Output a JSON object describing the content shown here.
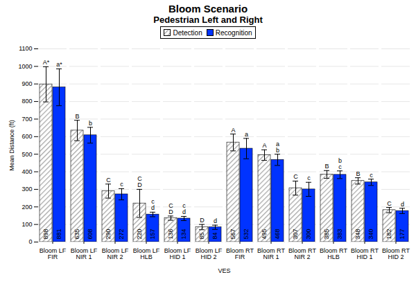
{
  "chart_data": {
    "type": "bar",
    "title": "Bloom Scenario",
    "subtitle": "Pedestrian Left and Right",
    "x_label": "VES",
    "y_label": "Mean Distance (ft)",
    "categories": [
      "Bloom LF\nFIR",
      "Bloom LF\nNIR 1",
      "Bloom LF\nNIR 2",
      "Bloom LF\nHLB",
      "Bloom LF\nHID 1",
      "Bloom LF\nHID 2",
      "Bloom RT\nFIR",
      "Bloom RT\nNIR 1",
      "Bloom RT\nNIR 2",
      "Bloom RT\nHLB",
      "Bloom RT\nHID 1",
      "Bloom RT\nHID 2"
    ],
    "series": [
      {
        "name": "Detection",
        "color": "#a6a6a6",
        "values": [
          898,
          635,
          290,
          220,
          136,
          85,
          567,
          495,
          307,
          385,
          348,
          182
        ],
        "error": [
          100,
          58,
          40,
          80,
          12,
          15,
          48,
          30,
          40,
          22,
          18,
          15
        ],
        "annotations": [
          "A*",
          "B",
          "C",
          "C\nD",
          "C\nD",
          "D",
          "A",
          "A",
          "C",
          "B",
          "B",
          "C"
        ]
      },
      {
        "name": "Recognition",
        "color": "#0033ff",
        "values": [
          881,
          608,
          272,
          157,
          134,
          84,
          532,
          468,
          300,
          383,
          340,
          177
        ],
        "error": [
          105,
          45,
          32,
          13,
          12,
          12,
          58,
          32,
          40,
          22,
          18,
          15
        ],
        "annotations": [
          "a*",
          "b",
          "c",
          "c\nd",
          "c\nd",
          "d",
          "a",
          "a\nb",
          "c",
          "b\nc",
          "c",
          "d"
        ]
      }
    ],
    "ylim": [
      0,
      1100
    ],
    "yticks": [
      0,
      100,
      200,
      300,
      400,
      500,
      600,
      700,
      800,
      900,
      1000,
      1100
    ],
    "grid": true,
    "legend": "top",
    "data_labels": true
  }
}
